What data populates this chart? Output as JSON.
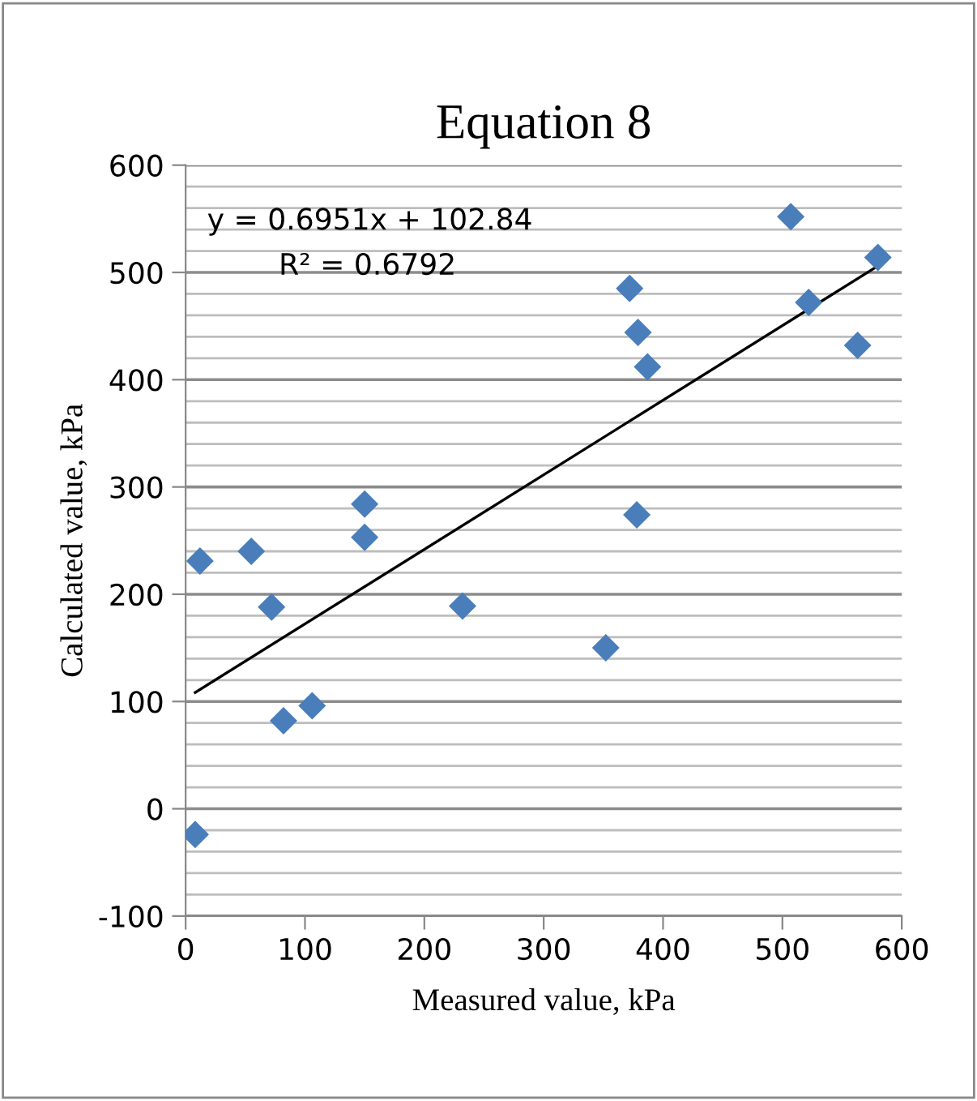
{
  "chart_data": {
    "type": "scatter",
    "title": "Equation 8",
    "xlabel": "Measured value, kPa",
    "ylabel": "Calculated value, kPa",
    "xlim": [
      0,
      600
    ],
    "xticks": [
      0,
      100,
      200,
      300,
      400,
      500,
      600
    ],
    "ylim": [
      -100,
      600
    ],
    "yticks": [
      -100,
      {
        "value": -80,
        "label": null
      },
      {
        "value": -60,
        "label": null
      },
      {
        "value": -40,
        "label": null
      },
      {
        "value": -20,
        "label": null
      },
      0,
      {
        "value": 20,
        "label": null
      },
      {
        "value": 40,
        "label": null
      },
      {
        "value": 60,
        "label": null
      },
      {
        "value": 80,
        "label": null
      },
      100,
      {
        "value": 120,
        "label": null
      },
      {
        "value": 140,
        "label": null
      },
      {
        "value": 160,
        "label": null
      },
      {
        "value": 180,
        "label": null
      },
      200,
      {
        "value": 220,
        "label": null
      },
      {
        "value": 240,
        "label": null
      },
      {
        "value": 260,
        "label": null
      },
      {
        "value": 280,
        "label": null
      },
      300,
      {
        "value": 320,
        "label": null
      },
      {
        "value": 340,
        "label": null
      },
      {
        "value": 360,
        "label": null
      },
      {
        "value": 380,
        "label": null
      },
      400,
      {
        "value": 420,
        "label": null
      },
      {
        "value": 440,
        "label": null
      },
      {
        "value": 460,
        "label": null
      },
      {
        "value": 480,
        "label": null
      },
      500,
      {
        "value": 520,
        "label": null
      },
      {
        "value": 540,
        "label": null
      },
      {
        "value": 560,
        "label": null
      },
      {
        "value": 580,
        "label": null
      },
      600
    ],
    "grid": "y",
    "marker": "diamond",
    "series": [
      {
        "color": "#4a7ebb",
        "x": [
          8,
          12,
          55,
          72,
          82,
          106,
          150,
          150,
          232,
          352,
          378,
          372,
          379,
          387,
          507,
          522,
          563,
          580
        ],
        "values": [
          -24,
          231,
          240,
          188,
          82,
          96,
          284,
          253,
          189,
          150,
          274,
          485,
          444,
          412,
          552,
          472,
          432,
          514
        ]
      },
      {
        "type": "line",
        "color": "#000000",
        "marker": "none",
        "x": [
          8,
          580
        ],
        "values": [
          108.4,
          506.0
        ]
      }
    ],
    "annotations": [
      "y = 0.6951x + 102.84",
      "R² = 0.6792"
    ]
  }
}
